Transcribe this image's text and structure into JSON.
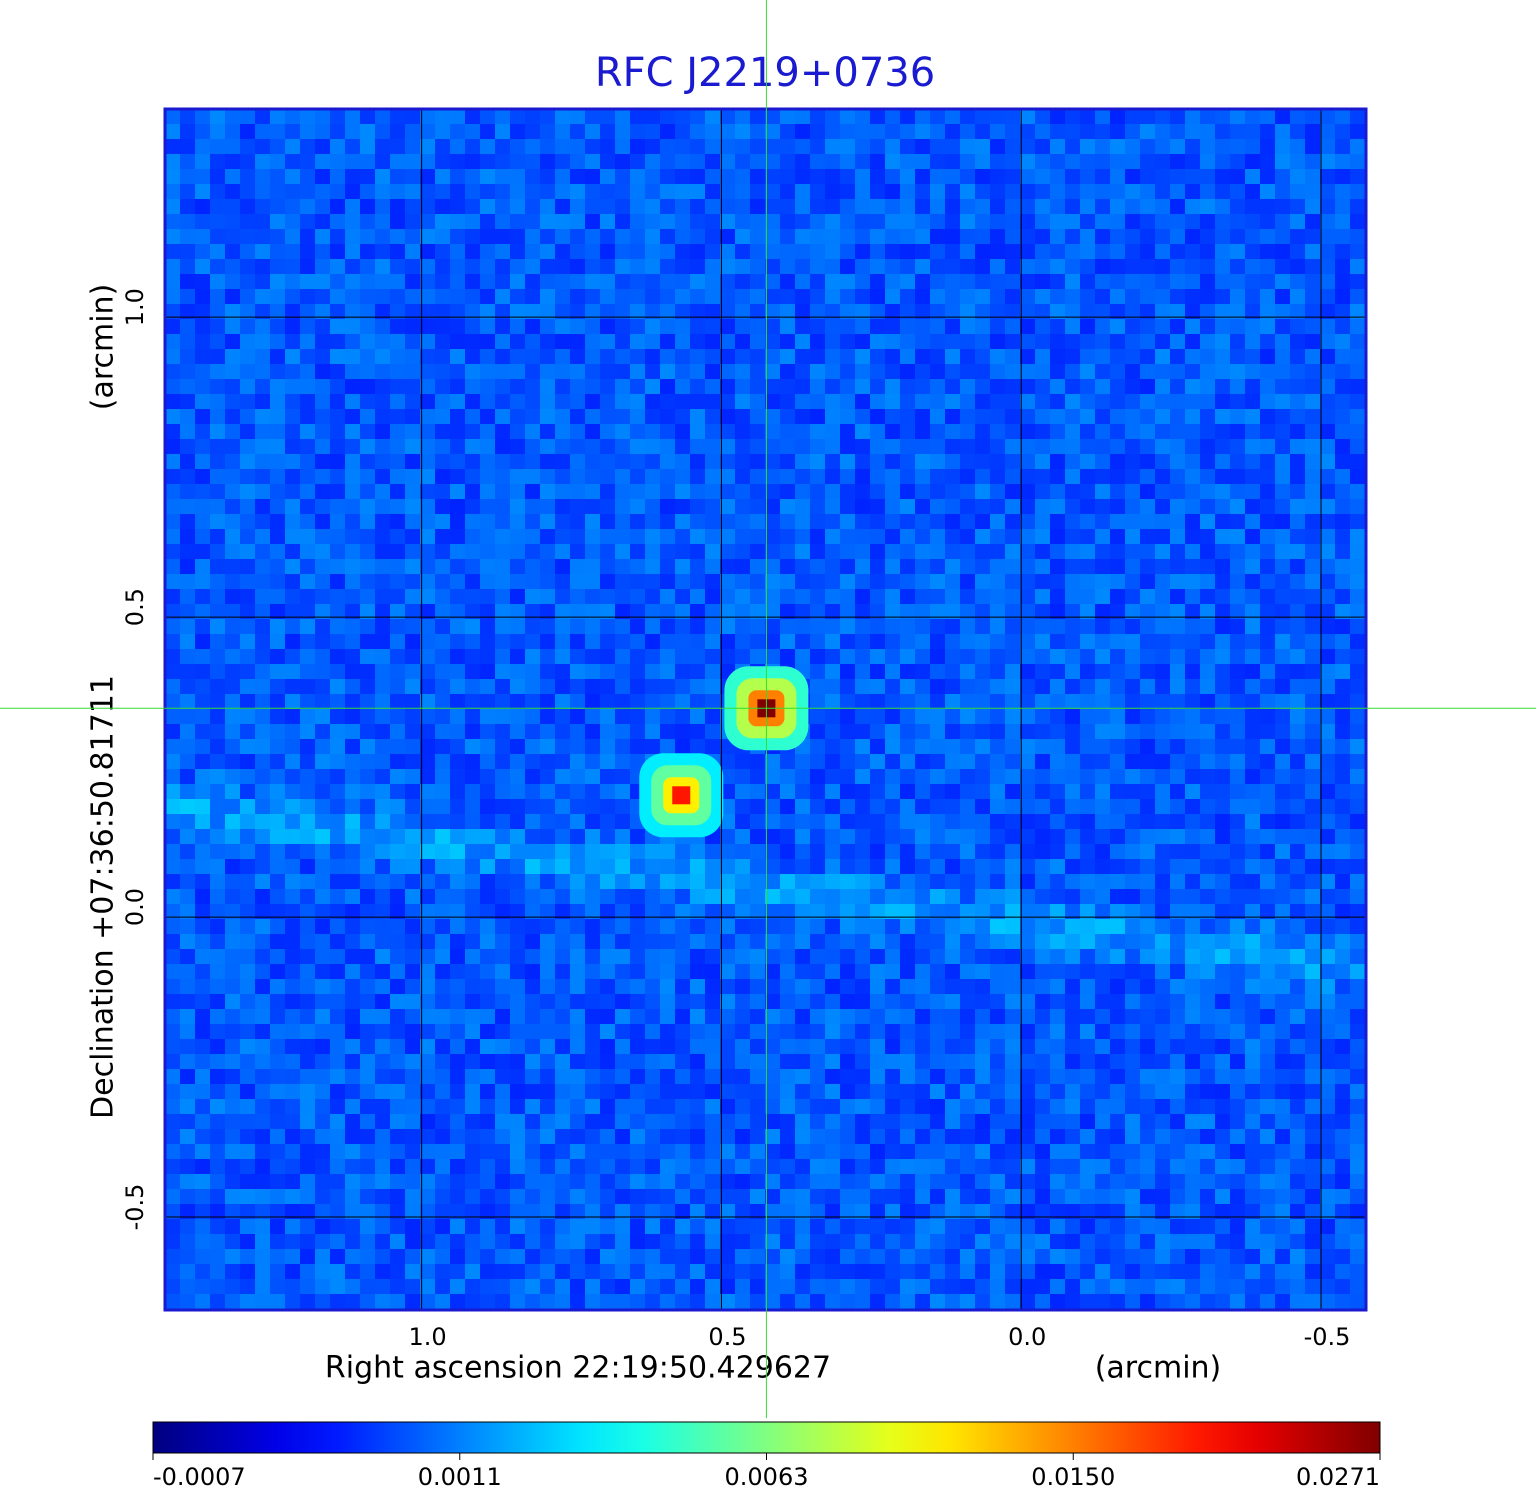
{
  "chart_data": {
    "type": "image",
    "title": "RFC J2219+0736",
    "x_label": "Right ascension  22:19:50.429627",
    "x_unit": "(arcmin)",
    "y_label": "Declination  +07:36:50.81711",
    "y_unit": "(arcmin)",
    "xlim": [
      1.428,
      -0.575
    ],
    "ylim": [
      -0.655,
      1.347
    ],
    "xticks": [
      {
        "value": 1,
        "label": "1.0"
      },
      0.5,
      {
        "value": 0,
        "label": "0.0"
      },
      -0.5
    ],
    "yticks": [
      -0.5,
      {
        "value": 0,
        "label": "0.0"
      },
      0.5,
      {
        "value": 1,
        "label": "1.0"
      }
    ],
    "grid": true,
    "colormap": "jet",
    "colorbar_ticks": [
      -0.0007,
      0.0011,
      0.0063,
      {
        "value": 0.015,
        "label": "0.0150"
      },
      0.0271
    ],
    "sources": {
      "x": [
        0.425,
        0.567
      ],
      "y": [
        0.348,
        0.203
      ],
      "values": [
        0.0271,
        0.02
      ]
    }
  }
}
